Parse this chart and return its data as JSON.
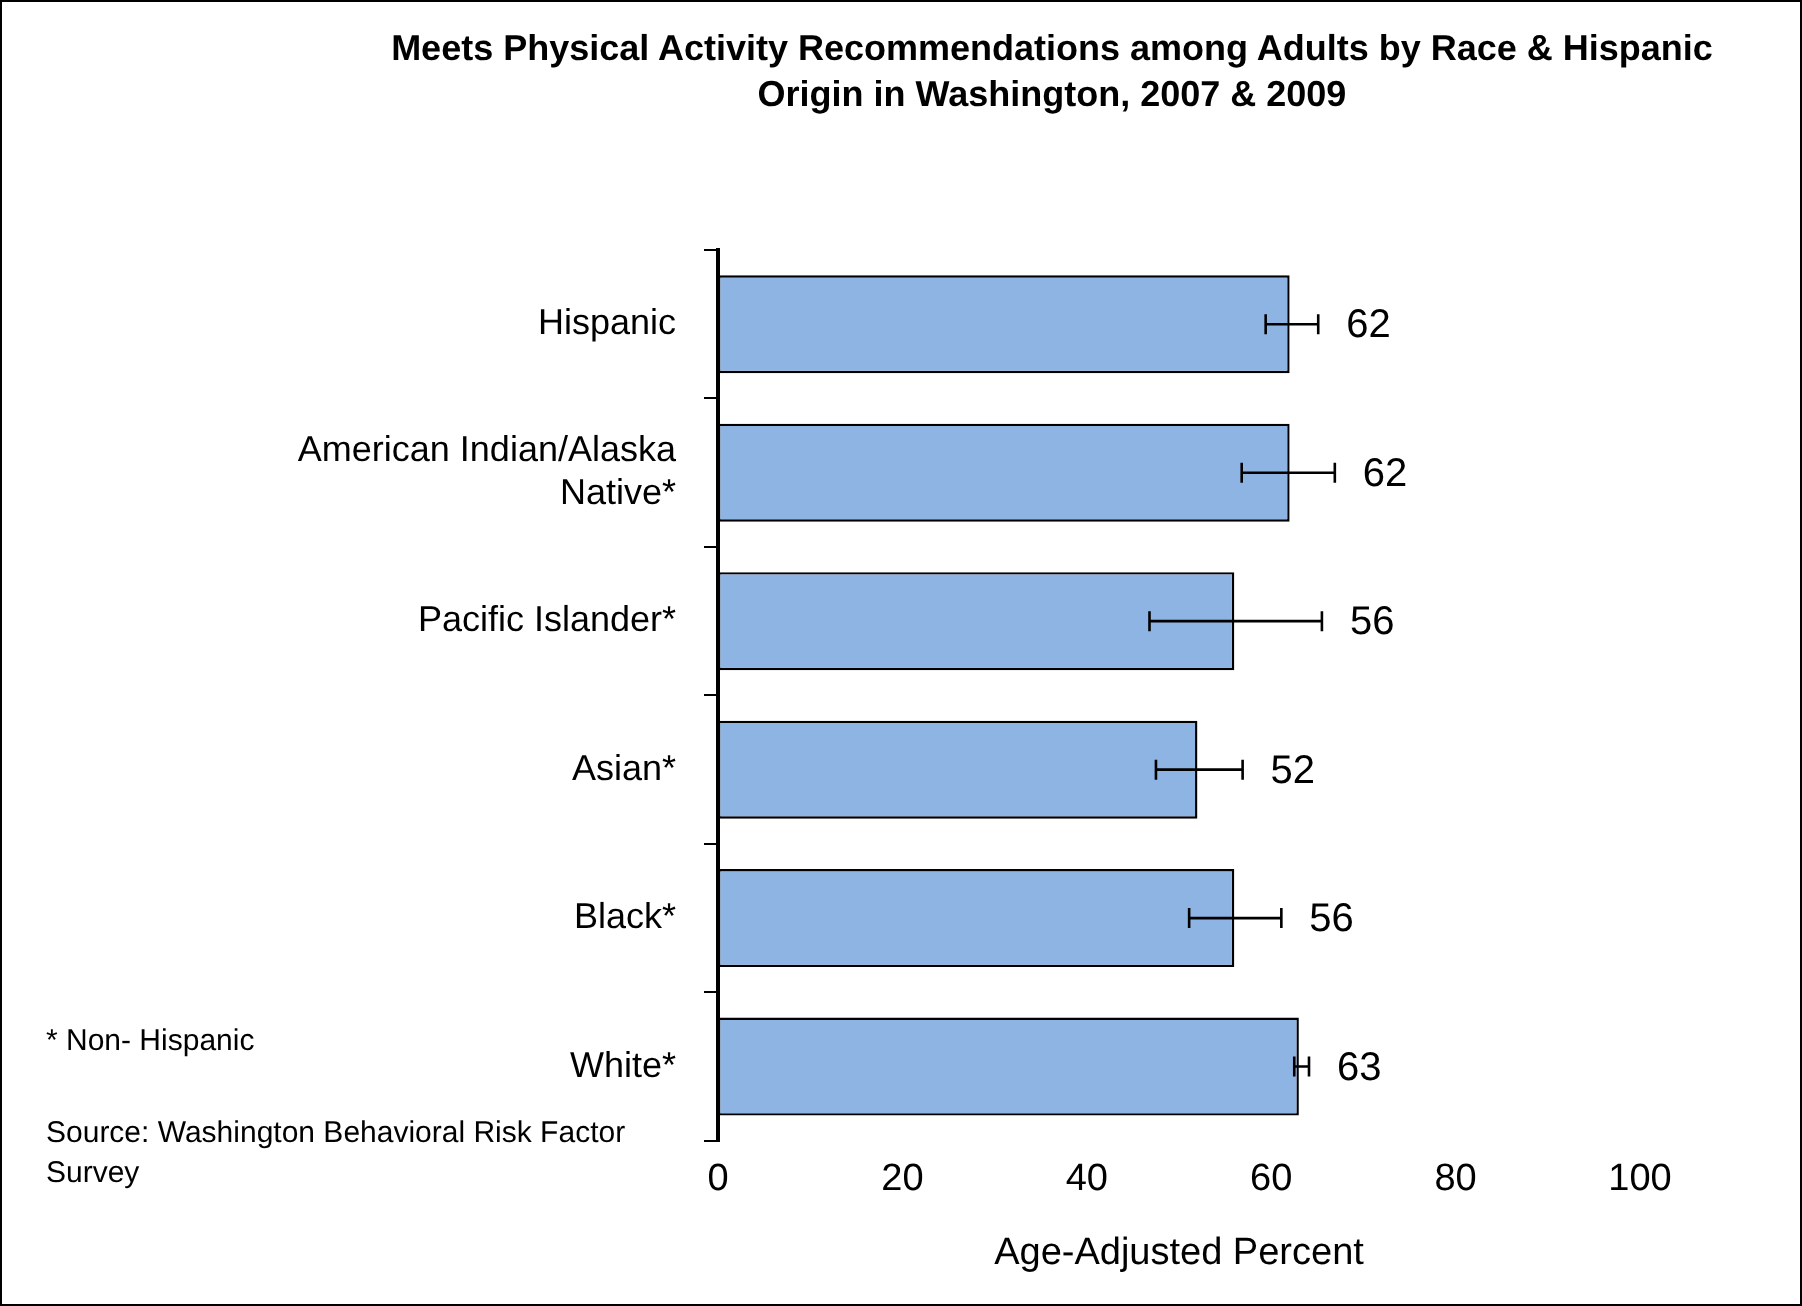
{
  "chart_data": {
    "type": "bar",
    "orientation": "horizontal",
    "title": "Meets Physical Activity Recommendations among Adults by Race & Hispanic Origin in Washington, 2007 & 2009",
    "xlabel": "Age-Adjusted Percent",
    "categories": [
      "Hispanic",
      "American Indian/Alaska Native*",
      "Pacific Islander*",
      "Asian*",
      "Black*",
      "White*"
    ],
    "values": [
      62,
      62,
      56,
      52,
      56,
      63
    ],
    "errors": [
      [
        59.4,
        65.1
      ],
      [
        56.8,
        66.9
      ],
      [
        46.8,
        65.5
      ],
      [
        47.5,
        56.9
      ],
      [
        51.1,
        61.1
      ],
      [
        62.5,
        64.1
      ]
    ],
    "color": "#8eb4e3",
    "data_labels": true,
    "xlim": [
      0,
      100
    ],
    "xticks": [
      0,
      20,
      40,
      60,
      80,
      100
    ],
    "grid": false,
    "legend": false,
    "annotations": [
      "* Non- Hispanic",
      "Source: Washington Behavioral Risk Factor Survey"
    ]
  }
}
